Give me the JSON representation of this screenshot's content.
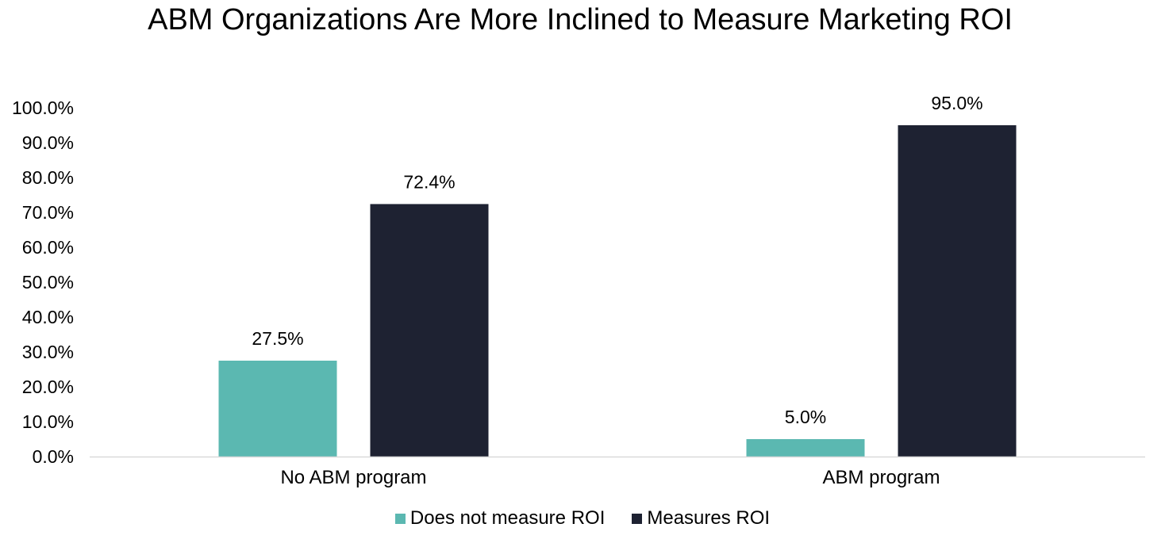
{
  "chart_data": {
    "type": "bar",
    "title": "ABM Organizations Are More Inclined to Measure Marketing ROI",
    "categories": [
      "No ABM program",
      "ABM program"
    ],
    "series": [
      {
        "name": "Does not measure ROI",
        "values": [
          27.5,
          5.0
        ],
        "color": "#5bb8b1"
      },
      {
        "name": "Measures ROI",
        "values": [
          72.4,
          95.0
        ],
        "color": "#1e2232"
      }
    ],
    "data_labels": [
      [
        "27.5%",
        "5.0%"
      ],
      [
        "72.4%",
        "95.0%"
      ]
    ],
    "yticks": [
      "0.0%",
      "10.0%",
      "20.0%",
      "30.0%",
      "40.0%",
      "50.0%",
      "60.0%",
      "70.0%",
      "80.0%",
      "90.0%",
      "100.0%"
    ],
    "ylim": [
      0,
      100
    ],
    "xlabel": "",
    "ylabel": "",
    "grid": false,
    "legend_position": "bottom"
  }
}
